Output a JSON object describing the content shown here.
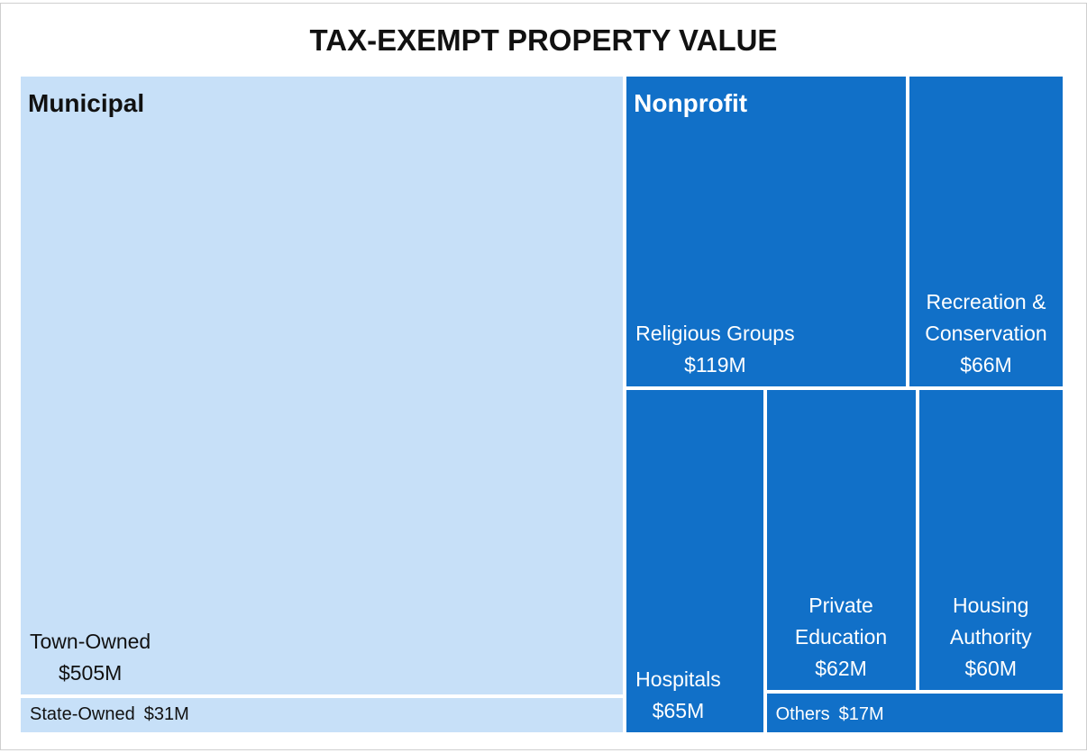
{
  "chart_data": {
    "type": "treemap",
    "title": "TAX-EXEMPT PROPERTY VALUE",
    "groups": [
      {
        "name": "Municipal",
        "color": "#c7e0f8",
        "text_color": "#111111",
        "categories": [
          "Town-Owned",
          "State-Owned"
        ],
        "values": [
          505,
          31
        ],
        "value_labels": [
          "$505M",
          "$31M"
        ]
      },
      {
        "name": "Nonprofit",
        "color": "#1170c8",
        "text_color": "#ffffff",
        "categories": [
          "Religious Groups",
          "Recreation & Conservation",
          "Hospitals",
          "Private Education",
          "Housing Authority",
          "Others"
        ],
        "values": [
          119,
          66,
          65,
          62,
          60,
          17
        ],
        "value_labels": [
          "$119M",
          "$66M",
          "$65M",
          "$62M",
          "$60M",
          "$17M"
        ]
      }
    ]
  }
}
